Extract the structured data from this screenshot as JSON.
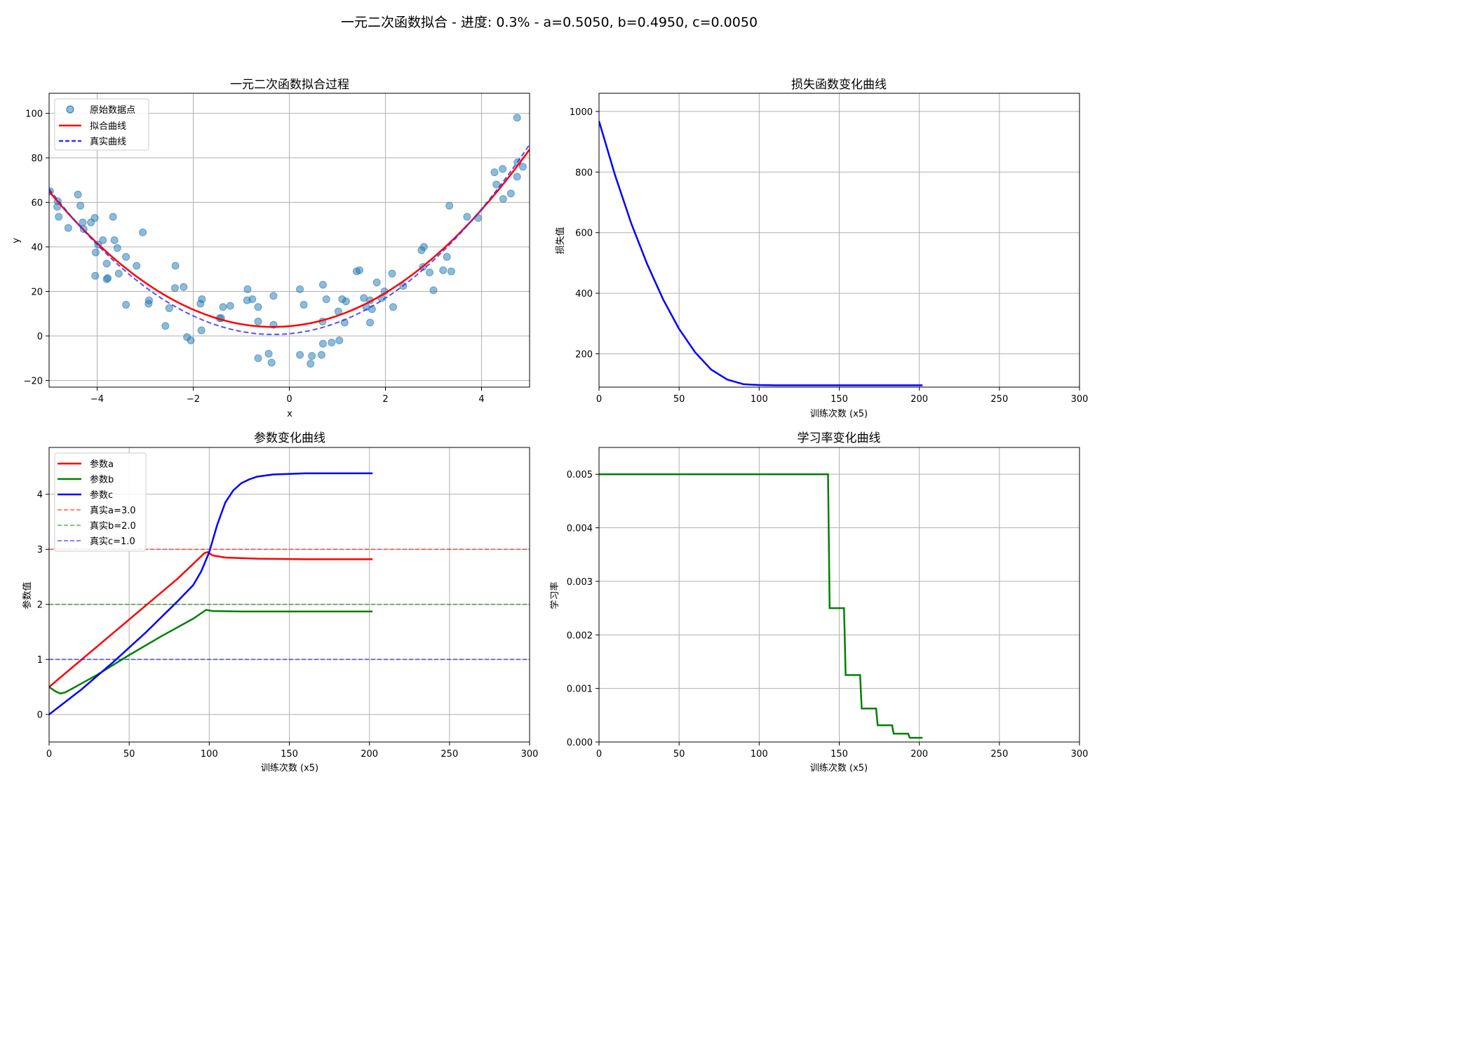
{
  "suptitle": "一元二次函数拟合 - 进度: 0.3% - a=0.5050, b=0.4950, c=0.0050",
  "colors": {
    "scatter": "#1f77b4",
    "fit": "#ff0000",
    "true": "#3333ff",
    "loss": "#0000ff",
    "param_a": "#ff0000",
    "param_b": "#008000",
    "param_c": "#0000ff",
    "lr": "#008000",
    "grid": "#b0b0b0"
  },
  "chart_data": [
    {
      "id": "fit",
      "type": "scatter",
      "title": "一元二次函数拟合过程",
      "xlabel": "x",
      "ylabel": "y",
      "xlim": [
        -5,
        5
      ],
      "ylim": [
        -23,
        109
      ],
      "xticks": [
        -4,
        -2,
        0,
        2,
        4
      ],
      "yticks": [
        -20,
        0,
        20,
        40,
        60,
        80,
        100
      ],
      "grid": true,
      "legend_position": "top-left",
      "legend": [
        "原始数据点",
        "拟合曲线",
        "真实曲线"
      ],
      "scatter_points": [
        [
          -4.98,
          65
        ],
        [
          -4.83,
          58
        ],
        [
          -4.82,
          60.5
        ],
        [
          -4.8,
          53.5
        ],
        [
          -4.6,
          48.5
        ],
        [
          -4.4,
          63.5
        ],
        [
          -4.35,
          58.5
        ],
        [
          -4.3,
          51
        ],
        [
          -4.28,
          48
        ],
        [
          -4.13,
          51
        ],
        [
          -4.05,
          53
        ],
        [
          -4.03,
          37.5
        ],
        [
          -4.04,
          27
        ],
        [
          -3.98,
          41
        ],
        [
          -3.88,
          43
        ],
        [
          -3.8,
          25.5
        ],
        [
          -3.78,
          26
        ],
        [
          -3.8,
          32.5
        ],
        [
          -3.67,
          53.5
        ],
        [
          -3.64,
          43
        ],
        [
          -3.58,
          39.5
        ],
        [
          -3.55,
          28
        ],
        [
          -3.4,
          14
        ],
        [
          -3.4,
          35.5
        ],
        [
          -3.18,
          31.5
        ],
        [
          -3.05,
          46.5
        ],
        [
          -2.93,
          14.5
        ],
        [
          -2.92,
          16
        ],
        [
          -2.58,
          4.5
        ],
        [
          -2.5,
          12.5
        ],
        [
          -2.38,
          21.5
        ],
        [
          -2.37,
          31.5
        ],
        [
          -2.2,
          22
        ],
        [
          -2.13,
          -0.5
        ],
        [
          -2.05,
          -2
        ],
        [
          -1.85,
          14.5
        ],
        [
          -1.82,
          16.5
        ],
        [
          -1.83,
          2.5
        ],
        [
          -1.45,
          8
        ],
        [
          -1.42,
          8
        ],
        [
          -1.38,
          13
        ],
        [
          -1.23,
          13.5
        ],
        [
          -0.87,
          21
        ],
        [
          -0.88,
          16
        ],
        [
          -0.77,
          16.5
        ],
        [
          -0.65,
          13
        ],
        [
          -0.65,
          6.5
        ],
        [
          -0.65,
          -10
        ],
        [
          -0.43,
          -8
        ],
        [
          -0.37,
          -12
        ],
        [
          -0.33,
          18
        ],
        [
          -0.33,
          5
        ],
        [
          0.22,
          21
        ],
        [
          0.22,
          -8.5
        ],
        [
          0.3,
          14
        ],
        [
          0.44,
          -12.5
        ],
        [
          0.47,
          -9
        ],
        [
          0.67,
          -8.5
        ],
        [
          0.69,
          6.5
        ],
        [
          0.7,
          -3.5
        ],
        [
          0.7,
          23
        ],
        [
          0.77,
          16.5
        ],
        [
          0.88,
          -3
        ],
        [
          1.02,
          11
        ],
        [
          1.04,
          -2
        ],
        [
          1.1,
          16.5
        ],
        [
          1.15,
          6
        ],
        [
          1.18,
          15.5
        ],
        [
          1.4,
          29
        ],
        [
          1.46,
          29.5
        ],
        [
          1.55,
          17
        ],
        [
          1.6,
          13
        ],
        [
          1.68,
          6
        ],
        [
          1.68,
          16
        ],
        [
          1.72,
          12
        ],
        [
          1.82,
          24
        ],
        [
          1.92,
          17
        ],
        [
          1.98,
          20
        ],
        [
          2.14,
          28
        ],
        [
          2.16,
          13
        ],
        [
          2.37,
          22.5
        ],
        [
          2.75,
          38.5
        ],
        [
          2.8,
          40
        ],
        [
          2.78,
          31
        ],
        [
          2.92,
          28.5
        ],
        [
          3.0,
          20.5
        ],
        [
          3.2,
          29.5
        ],
        [
          3.28,
          35.5
        ],
        [
          3.33,
          58.5
        ],
        [
          3.37,
          29
        ],
        [
          3.7,
          53.5
        ],
        [
          3.93,
          53
        ],
        [
          4.27,
          73.5
        ],
        [
          4.31,
          68
        ],
        [
          4.44,
          75
        ],
        [
          4.45,
          61.5
        ],
        [
          4.61,
          64
        ],
        [
          4.74,
          98
        ],
        [
          4.74,
          71.5
        ],
        [
          4.75,
          78
        ],
        [
          4.86,
          76
        ]
      ],
      "fit_coeffs": [
        2.8,
        1.88,
        4.38
      ],
      "true_coeffs": [
        3.0,
        2.0,
        1.0
      ]
    },
    {
      "id": "loss",
      "type": "line",
      "title": "损失函数变化曲线",
      "xlabel": "训练次数 (x5)",
      "ylabel": "损失值",
      "xlim": [
        0,
        300
      ],
      "ylim": [
        90,
        1060
      ],
      "xticks": [
        0,
        50,
        100,
        150,
        200,
        250,
        300
      ],
      "yticks": [
        200,
        400,
        600,
        800,
        1000
      ],
      "grid": true,
      "series": [
        {
          "x": [
            0,
            10,
            20,
            30,
            40,
            50,
            60,
            70,
            80,
            90,
            95,
            100,
            110,
            120,
            150,
            180,
            202
          ],
          "values": [
            968,
            790,
            632,
            497,
            380,
            282,
            205,
            148,
            115,
            100,
            98,
            97,
            96,
            96,
            96,
            96,
            96
          ]
        }
      ]
    },
    {
      "id": "params",
      "type": "line",
      "title": "参数变化曲线",
      "xlabel": "训练次数 (x5)",
      "ylabel": "参数值",
      "xlim": [
        0,
        300
      ],
      "ylim": [
        -0.5,
        4.85
      ],
      "xticks": [
        0,
        50,
        100,
        150,
        200,
        250,
        300
      ],
      "yticks": [
        0,
        1,
        2,
        3,
        4
      ],
      "grid": true,
      "legend_position": "top-left",
      "series": [
        {
          "name": "参数a",
          "x": [
            0,
            20,
            40,
            60,
            80,
            97,
            99,
            102,
            110,
            130,
            160,
            202
          ],
          "values": [
            0.5,
            0.99,
            1.48,
            1.97,
            2.46,
            2.93,
            2.95,
            2.89,
            2.85,
            2.83,
            2.82,
            2.82
          ]
        },
        {
          "name": "参数b",
          "x": [
            0,
            4,
            7,
            10,
            15,
            20,
            30,
            50,
            70,
            90,
            98,
            102,
            120,
            160,
            202
          ],
          "values": [
            0.5,
            0.42,
            0.38,
            0.4,
            0.48,
            0.56,
            0.72,
            1.08,
            1.42,
            1.74,
            1.9,
            1.88,
            1.87,
            1.87,
            1.87
          ]
        },
        {
          "name": "参数c",
          "x": [
            0,
            20,
            40,
            60,
            80,
            90,
            95,
            100,
            105,
            110,
            115,
            120,
            125,
            130,
            140,
            150,
            160,
            202
          ],
          "values": [
            0,
            0.45,
            0.95,
            1.48,
            2.05,
            2.35,
            2.6,
            2.95,
            3.45,
            3.85,
            4.07,
            4.2,
            4.27,
            4.32,
            4.36,
            4.37,
            4.38,
            4.38
          ]
        },
        {
          "name": "真实a=3.0",
          "value": 3.0
        },
        {
          "name": "真实b=2.0",
          "value": 2.0
        },
        {
          "name": "真实c=1.0",
          "value": 1.0
        }
      ]
    },
    {
      "id": "lr",
      "type": "line",
      "title": "学习率变化曲线",
      "xlabel": "训练次数 (x5)",
      "ylabel": "学习率",
      "xlim": [
        0,
        300
      ],
      "ylim": [
        0,
        0.0055
      ],
      "xticks": [
        0,
        50,
        100,
        150,
        200,
        250,
        300
      ],
      "yticks": [
        "0.000",
        "0.001",
        "0.002",
        "0.003",
        "0.004",
        "0.005"
      ],
      "grid": true,
      "series": [
        {
          "x": [
            0,
            143,
            144,
            153,
            154,
            163,
            164,
            173,
            174,
            183,
            184,
            193,
            194,
            202
          ],
          "values": [
            0.005,
            0.005,
            0.0025,
            0.0025,
            0.00125,
            0.00125,
            0.000625,
            0.000625,
            0.0003125,
            0.0003125,
            0.00015625,
            0.00015625,
            7.8e-05,
            7.8e-05
          ]
        }
      ]
    }
  ]
}
